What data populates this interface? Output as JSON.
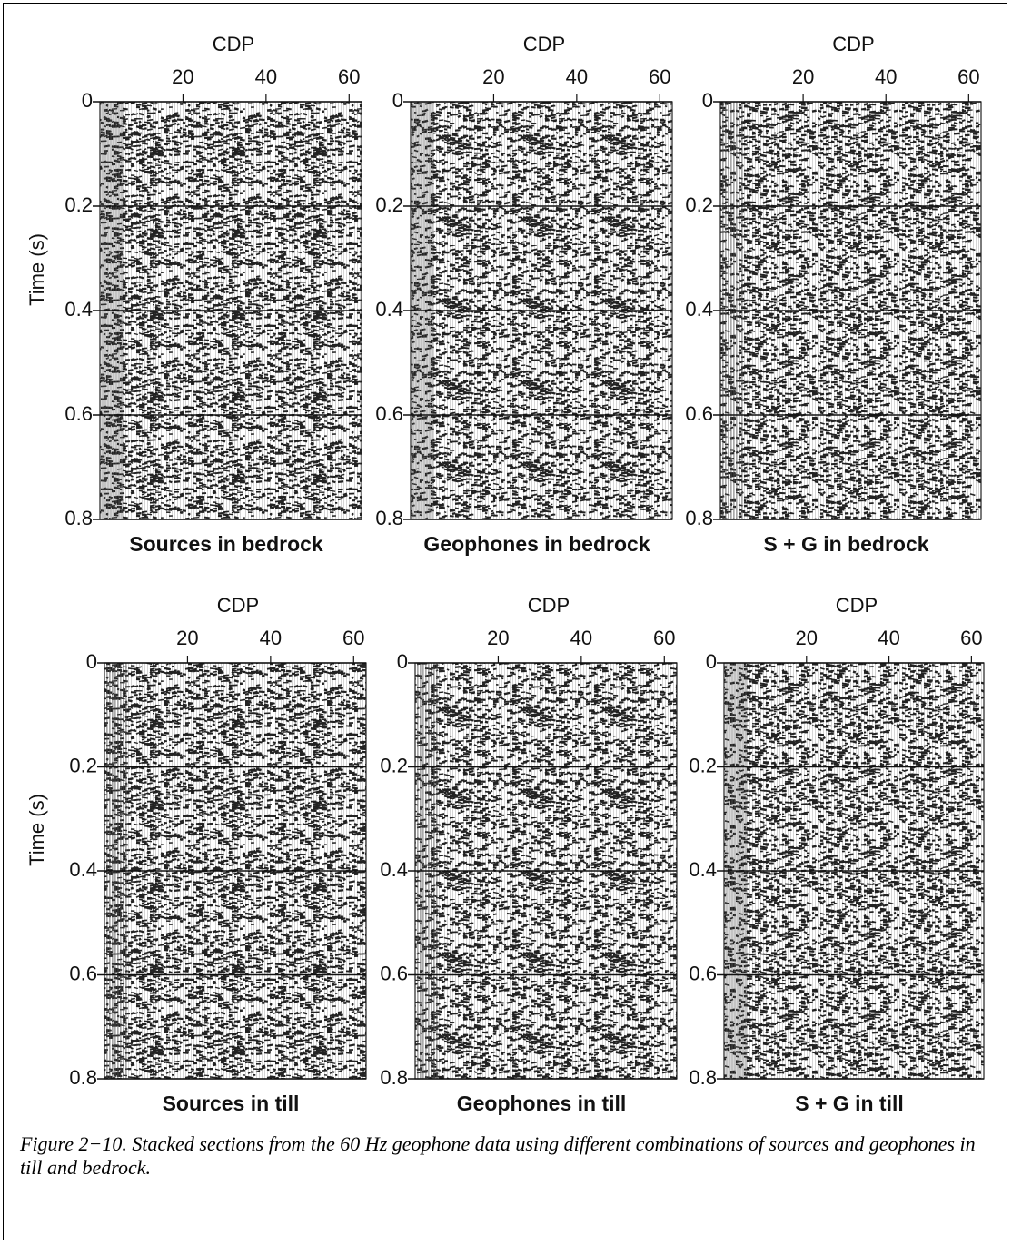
{
  "figure": {
    "panels": [
      {
        "x_label": "CDP",
        "y_label": "Time (s)",
        "xlim": [
          0,
          63
        ],
        "ylim": [
          0,
          0.8
        ],
        "xticks": [
          20,
          40,
          60
        ],
        "yticks": [
          0,
          0.2,
          0.4,
          0.6,
          0.8
        ],
        "label": "Sources in bedrock"
      },
      {
        "x_label": "CDP",
        "xlim": [
          0,
          63
        ],
        "ylim": [
          0,
          0.8
        ],
        "xticks": [
          20,
          40,
          60
        ],
        "yticks": [
          0,
          0.2,
          0.4,
          0.6,
          0.8
        ],
        "label": "Geophones in bedrock"
      },
      {
        "x_label": "CDP",
        "xlim": [
          0,
          63
        ],
        "ylim": [
          0,
          0.8
        ],
        "xticks": [
          20,
          40,
          60
        ],
        "yticks": [
          0,
          0.2,
          0.4,
          0.6,
          0.8
        ],
        "label": "S + G in bedrock"
      },
      {
        "x_label": "CDP",
        "y_label": "Time (s)",
        "xlim": [
          0,
          63
        ],
        "ylim": [
          0,
          0.8
        ],
        "xticks": [
          20,
          40,
          60
        ],
        "yticks": [
          0,
          0.2,
          0.4,
          0.6,
          0.8
        ],
        "label": "Sources in till"
      },
      {
        "x_label": "CDP",
        "xlim": [
          0,
          63
        ],
        "ylim": [
          0,
          0.8
        ],
        "xticks": [
          20,
          40,
          60
        ],
        "yticks": [
          0,
          0.2,
          0.4,
          0.6,
          0.8
        ],
        "label": "Geophones in till"
      },
      {
        "x_label": "CDP",
        "xlim": [
          0,
          63
        ],
        "ylim": [
          0,
          0.8
        ],
        "xticks": [
          20,
          40,
          60
        ],
        "yticks": [
          0,
          0.2,
          0.4,
          0.6,
          0.8
        ],
        "label": "S + G in till"
      }
    ],
    "caption": "Figure 2−10. Stacked sections from the 60 Hz geophone data using different combinations of sources and geophones in till and bedrock."
  }
}
